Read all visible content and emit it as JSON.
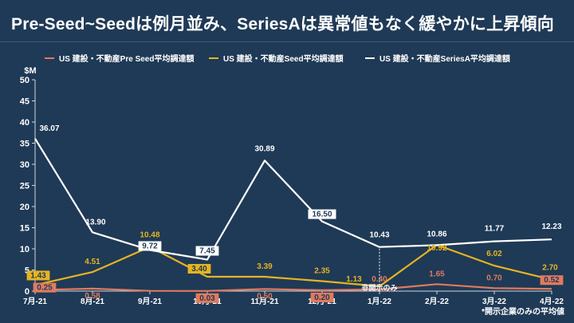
{
  "title": "Pre-Seed~Seedは例月並み、SeriesAは異常値もなく緩やかに上昇傾向",
  "note": "*開示企業のみの平均値",
  "chart_data": {
    "type": "line",
    "categories": [
      "7月-21",
      "8月-21",
      "9月-21",
      "10月-21",
      "11月-21",
      "12月-21",
      "1月-22",
      "2月-22",
      "3月-22",
      "4月-22"
    ],
    "ylim": [
      0,
      50
    ],
    "yticks": [
      0,
      5,
      10,
      15,
      20,
      25,
      30,
      35,
      40,
      45,
      50
    ],
    "yunit": "$M",
    "grid": false,
    "legend_position": "top",
    "series": [
      {
        "name": "US 建設・不動産Pre Seed平均調達額",
        "color": "#e07a5f",
        "values": [
          0.25,
          0.58,
          0.05,
          0.03,
          0.5,
          0.2,
          0.4,
          1.65,
          0.7,
          0.52
        ],
        "labels": [
          "0.25",
          "0.58",
          "",
          "0.03",
          "0.50",
          "0.20",
          "0.40",
          "1.65",
          "0.70",
          "0.52"
        ]
      },
      {
        "name": "US 建設・不動産Seed平均調達額",
        "color": "#e6b422",
        "values": [
          1.43,
          4.51,
          10.48,
          3.4,
          3.39,
          2.35,
          1.13,
          10.92,
          6.02,
          2.7
        ],
        "labels": [
          "1.43",
          "4.51",
          "10.48",
          "3.40",
          "3.39",
          "2.35",
          "1.13",
          "10.92",
          "6.02",
          "2.70"
        ]
      },
      {
        "name": "US 建設・不動産SeriesA平均調達額",
        "color": "#ffffff",
        "values": [
          36.07,
          13.9,
          9.72,
          7.45,
          30.89,
          16.5,
          10.43,
          10.86,
          11.77,
          12.23
        ],
        "labels": [
          "36.07",
          "13.90",
          "9.72",
          "7.45",
          "30.89",
          "16.50",
          "10.43",
          "10.86",
          "11.77",
          "12.23"
        ]
      }
    ],
    "annotations": [
      {
        "text": "非開示のみ",
        "category": "1月-22",
        "series": "US 建設・不動産SeriesA平均調達額"
      }
    ]
  }
}
